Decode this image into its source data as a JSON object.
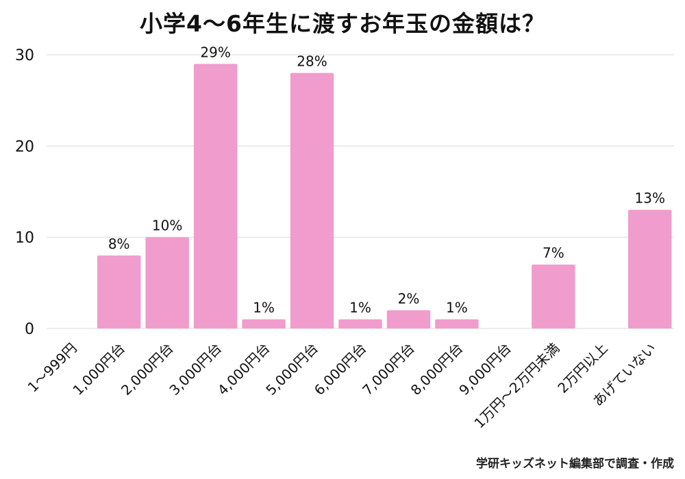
{
  "chart_data": {
    "type": "bar",
    "title": "小学4〜6年生に渡すお年玉の金額は？",
    "xlabel": "",
    "ylabel": "",
    "categories": [
      "1〜999円",
      "1,000円台",
      "2,000円台",
      "3,000円台",
      "4,000円台",
      "5,000円台",
      "6,000円台",
      "7,000円台",
      "8,000円台",
      "9,000円台",
      "1万円〜2万円未満",
      "2万円以上",
      "あげていない"
    ],
    "values": [
      0,
      8,
      10,
      29,
      1,
      28,
      1,
      2,
      1,
      0,
      7,
      0,
      13
    ],
    "value_labels": [
      "",
      "8%",
      "10%",
      "29%",
      "1%",
      "28%",
      "1%",
      "2%",
      "1%",
      "",
      "7%",
      "",
      "13%"
    ],
    "ylim": [
      0,
      30
    ],
    "yticks": [
      "0",
      "10",
      "20",
      "30"
    ],
    "grid": true,
    "bar_color": "#f09ccc",
    "grid_color": "#d9d9d9"
  },
  "footer": {
    "source": "学研キッズネット編集部で調査・作成"
  }
}
